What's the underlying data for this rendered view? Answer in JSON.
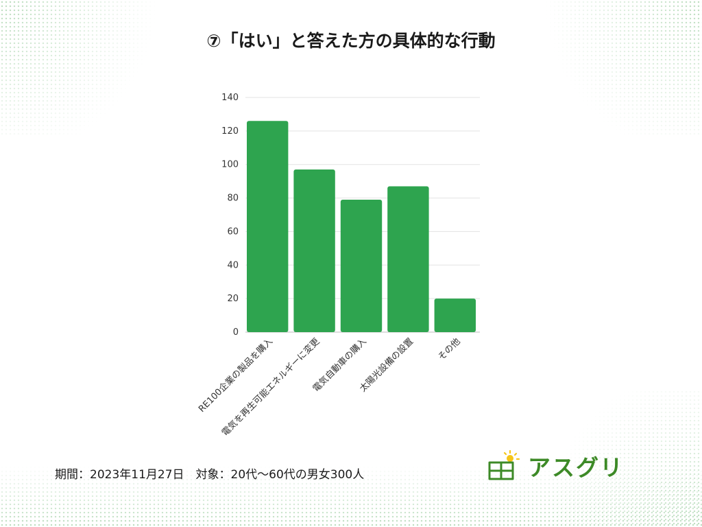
{
  "title": "⑦「はい」と答えた方の具体的な行動",
  "footnote": "期間：2023年11月27日　対象：20代〜60代の男女300人",
  "brand": {
    "name": "アスグリ",
    "logo_icon": "solar-panel-sun-icon",
    "color": "#3d8a27",
    "sun_color": "#f5c518"
  },
  "chart_data": {
    "type": "bar",
    "categories": [
      "RE100企業の製品を購入",
      "電気を再生可能エネルギーに変更",
      "電気自動車の購入",
      "太陽光設備の設置",
      "その他"
    ],
    "values": [
      126,
      97,
      79,
      87,
      20
    ],
    "ylim": [
      0,
      140
    ],
    "yticks": [
      0,
      20,
      40,
      60,
      80,
      100,
      120,
      140
    ],
    "grid": true,
    "legend": false,
    "bar_color": "#2ea44f"
  }
}
